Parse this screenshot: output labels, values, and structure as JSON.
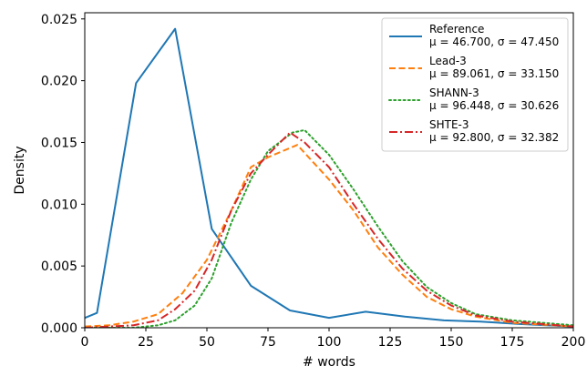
{
  "chart_data": {
    "type": "line",
    "xlabel": "# words",
    "ylabel": "Density",
    "xlim": [
      0,
      200
    ],
    "ylim": [
      0,
      0.0255
    ],
    "xticks": [
      "0",
      "25",
      "50",
      "75",
      "100",
      "125",
      "150",
      "175",
      "200"
    ],
    "xtick_values": [
      0,
      25,
      50,
      75,
      100,
      125,
      150,
      175,
      200
    ],
    "yticks": [
      "0.000",
      "0.005",
      "0.010",
      "0.015",
      "0.020",
      "0.025"
    ],
    "ytick_values": [
      0,
      0.005,
      0.01,
      0.015,
      0.02,
      0.025
    ],
    "grid": false,
    "legend_position": "top-right",
    "series": [
      {
        "name": "Reference",
        "stats": "μ = 46.700, σ = 47.450",
        "color": "#1f77b4",
        "dash": "solid",
        "points": [
          [
            0,
            0.0008
          ],
          [
            5,
            0.0012
          ],
          [
            21,
            0.0198
          ],
          [
            37,
            0.0242
          ],
          [
            52,
            0.008
          ],
          [
            68,
            0.0034
          ],
          [
            84,
            0.0014
          ],
          [
            100,
            0.0008
          ],
          [
            115,
            0.0013
          ],
          [
            131,
            0.0009
          ],
          [
            147,
            0.0006
          ],
          [
            162,
            0.0005
          ],
          [
            178,
            0.0003
          ],
          [
            200,
            0.0001
          ]
        ]
      },
      {
        "name": "Lead-3",
        "stats": "μ = 89.061, σ = 33.150",
        "color": "#ff7f0e",
        "dash": "dashed",
        "points": [
          [
            0,
            0.0001
          ],
          [
            10,
            0.0002
          ],
          [
            20,
            0.0005
          ],
          [
            30,
            0.0011
          ],
          [
            40,
            0.0028
          ],
          [
            50,
            0.0055
          ],
          [
            60,
            0.0095
          ],
          [
            68,
            0.013
          ],
          [
            75,
            0.0138
          ],
          [
            87,
            0.0148
          ],
          [
            100,
            0.012
          ],
          [
            110,
            0.0095
          ],
          [
            120,
            0.0065
          ],
          [
            130,
            0.0043
          ],
          [
            140,
            0.0025
          ],
          [
            150,
            0.0015
          ],
          [
            160,
            0.0009
          ],
          [
            175,
            0.0004
          ],
          [
            200,
            0.0001
          ]
        ]
      },
      {
        "name": "SHANN-3",
        "stats": "μ = 96.448, σ = 30.626",
        "color": "#2ca02c",
        "dash": "dotted",
        "points": [
          [
            0,
            0.0
          ],
          [
            20,
            0.0
          ],
          [
            30,
            0.0002
          ],
          [
            37,
            0.0006
          ],
          [
            45,
            0.0018
          ],
          [
            52,
            0.004
          ],
          [
            60,
            0.0085
          ],
          [
            68,
            0.012
          ],
          [
            75,
            0.0143
          ],
          [
            85,
            0.0158
          ],
          [
            90,
            0.016
          ],
          [
            100,
            0.014
          ],
          [
            110,
            0.0112
          ],
          [
            120,
            0.0082
          ],
          [
            130,
            0.0054
          ],
          [
            140,
            0.0033
          ],
          [
            150,
            0.002
          ],
          [
            160,
            0.0011
          ],
          [
            175,
            0.0006
          ],
          [
            200,
            0.0002
          ]
        ]
      },
      {
        "name": "SHTE-3",
        "stats": "μ = 92.800, σ = 32.382",
        "color": "#d62728",
        "dash": "dashdot",
        "points": [
          [
            0,
            0.0
          ],
          [
            20,
            0.0002
          ],
          [
            30,
            0.0006
          ],
          [
            37,
            0.0015
          ],
          [
            45,
            0.003
          ],
          [
            52,
            0.0055
          ],
          [
            60,
            0.0095
          ],
          [
            68,
            0.0125
          ],
          [
            75,
            0.014
          ],
          [
            84,
            0.0158
          ],
          [
            90,
            0.015
          ],
          [
            100,
            0.013
          ],
          [
            110,
            0.01
          ],
          [
            120,
            0.0072
          ],
          [
            130,
            0.0048
          ],
          [
            140,
            0.003
          ],
          [
            150,
            0.0018
          ],
          [
            160,
            0.001
          ],
          [
            175,
            0.0005
          ],
          [
            200,
            0.0001
          ]
        ]
      }
    ]
  }
}
